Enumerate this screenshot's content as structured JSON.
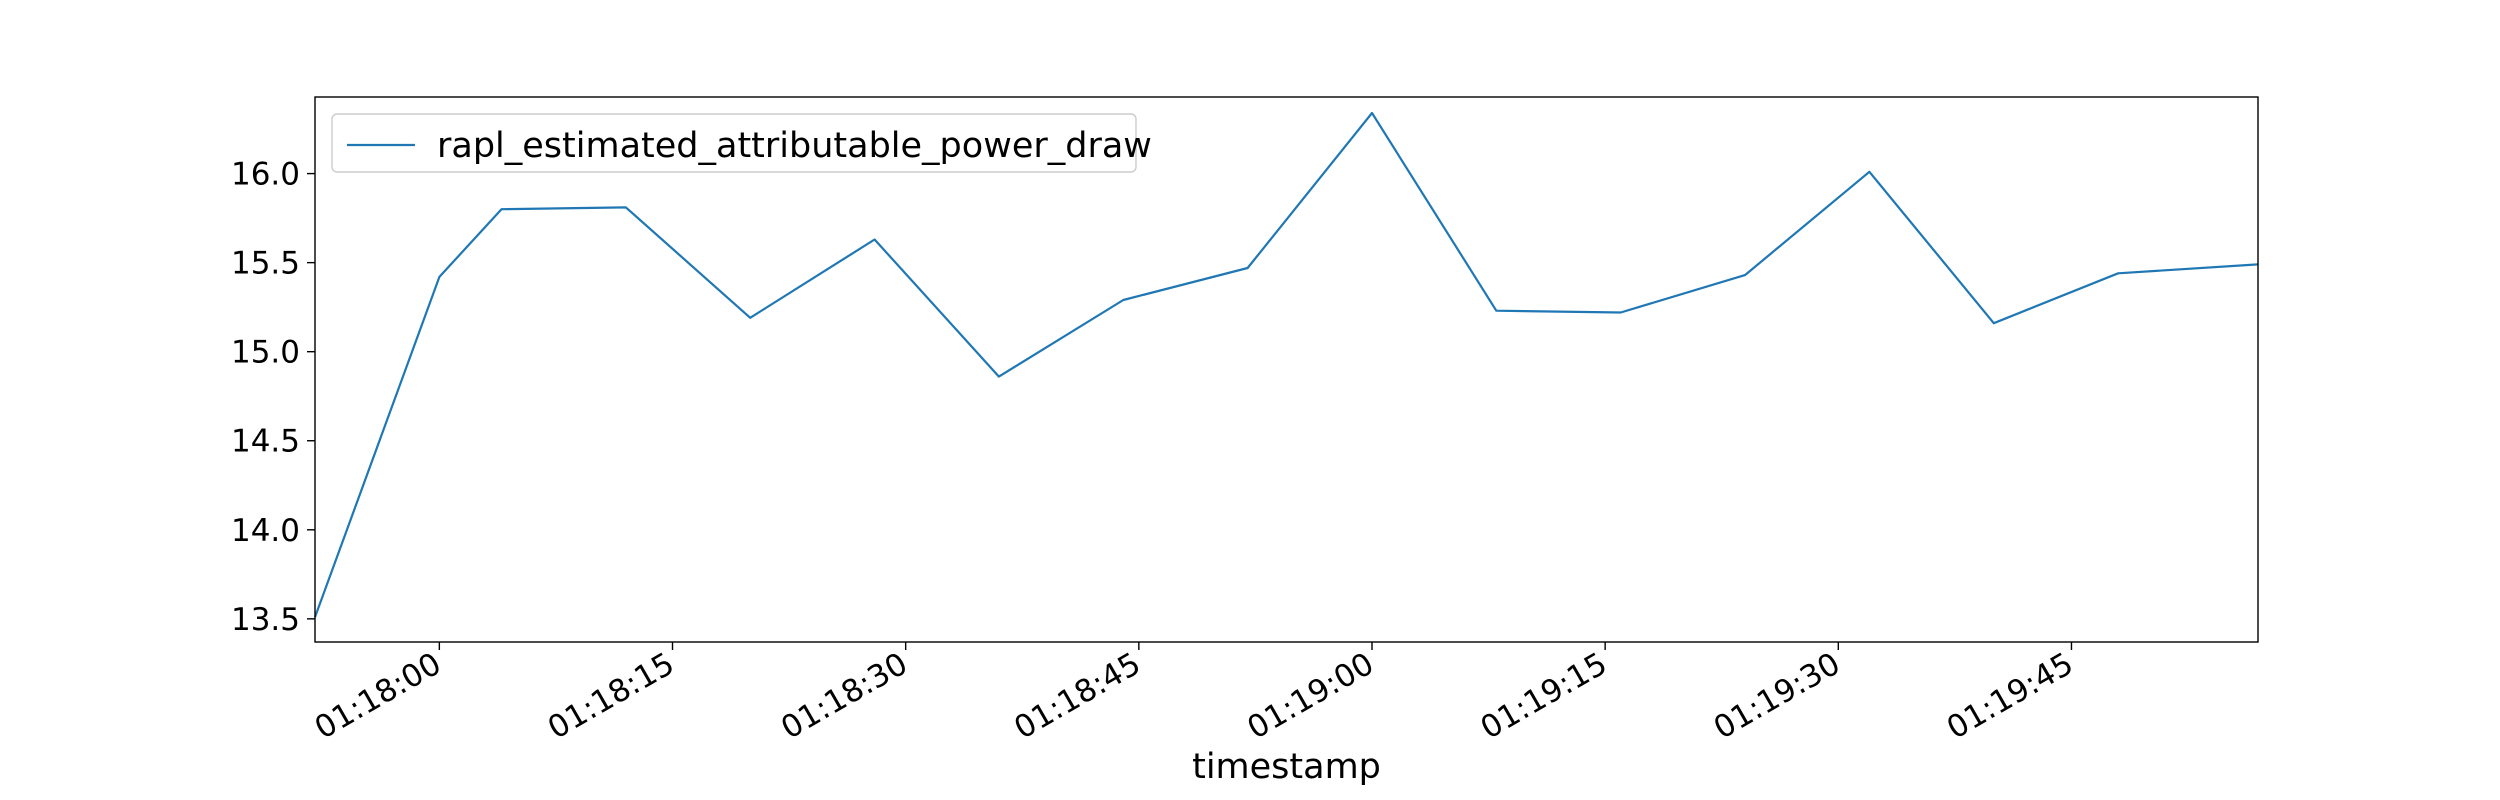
{
  "chart_data": {
    "type": "line",
    "title": "",
    "xlabel": "timestamp",
    "ylabel": "",
    "xlim": [
      "01:17:52",
      "01:19:57"
    ],
    "ylim": [
      13.37,
      16.43
    ],
    "grid": false,
    "legend_position": "top-left",
    "x_ticks": [
      "01:18:00",
      "01:18:15",
      "01:18:30",
      "01:18:45",
      "01:19:00",
      "01:19:15",
      "01:19:30",
      "01:19:45"
    ],
    "y_ticks": [
      "13.5",
      "14.0",
      "14.5",
      "15.0",
      "15.5",
      "16.0"
    ],
    "series": [
      {
        "name": "rapl_estimated_attributable_power_draw",
        "color": "#1f77b4",
        "x": [
          "01:17:52",
          "01:18:00",
          "01:18:04",
          "01:18:12",
          "01:18:20",
          "01:18:28",
          "01:18:36",
          "01:18:44",
          "01:18:52",
          "01:19:00",
          "01:19:08",
          "01:19:16",
          "01:19:24",
          "01:19:32",
          "01:19:40",
          "01:19:48",
          "01:19:57"
        ],
        "values": [
          13.51,
          15.42,
          15.8,
          15.81,
          15.19,
          15.63,
          14.86,
          15.29,
          15.47,
          16.34,
          15.23,
          15.22,
          15.43,
          16.01,
          15.16,
          15.44,
          15.49
        ]
      }
    ]
  }
}
